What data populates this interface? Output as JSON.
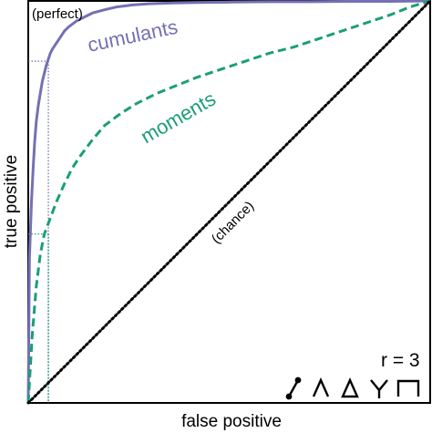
{
  "chart_data": {
    "type": "line",
    "xlabel": "false positive",
    "ylabel": "true positive",
    "xlim": [
      0,
      1
    ],
    "ylim": [
      0,
      1
    ],
    "grid": false,
    "series": [
      {
        "name": "cumulants",
        "color": "#7570b3",
        "style": "solid",
        "x": [
          0,
          0.003,
          0.008,
          0.012,
          0.016,
          0.02,
          0.025,
          0.03,
          0.035,
          0.04,
          0.045,
          0.05,
          0.055,
          0.06,
          0.07,
          0.08,
          0.09,
          0.1,
          0.12,
          0.14,
          0.16,
          0.19,
          0.22,
          0.26,
          0.3,
          0.36,
          0.42,
          0.5,
          0.6,
          0.7,
          0.8,
          0.9,
          1.0
        ],
        "y": [
          0,
          0.36,
          0.5,
          0.58,
          0.65,
          0.7,
          0.74,
          0.77,
          0.8,
          0.82,
          0.84,
          0.855,
          0.87,
          0.88,
          0.895,
          0.91,
          0.925,
          0.935,
          0.95,
          0.96,
          0.97,
          0.978,
          0.985,
          0.99,
          0.993,
          0.995,
          0.996,
          0.997,
          0.998,
          0.998,
          0.999,
          0.999,
          1.0
        ]
      },
      {
        "name": "moments",
        "color": "#1b9e77",
        "style": "dashed",
        "x": [
          0,
          0.01,
          0.02,
          0.03,
          0.04,
          0.055,
          0.07,
          0.09,
          0.11,
          0.13,
          0.16,
          0.19,
          0.23,
          0.27,
          0.32,
          0.37,
          0.42,
          0.48,
          0.54,
          0.6,
          0.66,
          0.72,
          0.78,
          0.84,
          0.9,
          0.95,
          1.0
        ],
        "y": [
          0,
          0.17,
          0.29,
          0.37,
          0.42,
          0.46,
          0.5,
          0.545,
          0.585,
          0.615,
          0.655,
          0.69,
          0.72,
          0.745,
          0.77,
          0.79,
          0.81,
          0.83,
          0.85,
          0.87,
          0.885,
          0.905,
          0.925,
          0.945,
          0.965,
          0.985,
          1.0
        ]
      },
      {
        "name": "(chance)",
        "color": "#000000",
        "style": "dotted",
        "x": [
          0,
          1
        ],
        "y": [
          0,
          1
        ]
      }
    ],
    "annotations": {
      "perfect": "(perfect)",
      "cumulants": "cumulants",
      "moments": "moments",
      "chance": "(chance)",
      "order": "r = 3"
    },
    "guides": [
      {
        "x": 0.05,
        "y": 0.85,
        "color": "#7570b3"
      },
      {
        "x": 0.05,
        "y": 0.42,
        "color": "#1b9e77"
      }
    ],
    "motif_icons": [
      "edge-motif-icon",
      "wedge-motif-icon",
      "triangle-motif-icon",
      "claw-motif-icon",
      "path-motif-icon"
    ]
  }
}
